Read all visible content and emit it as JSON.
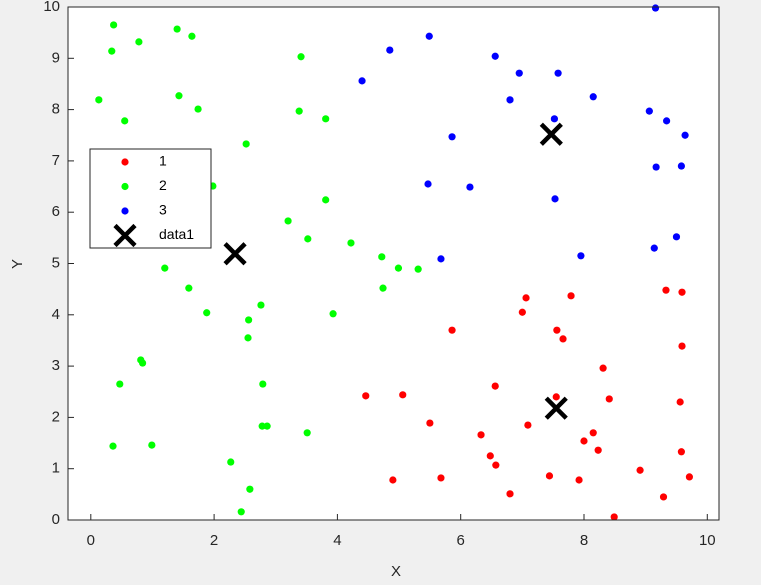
{
  "chart_data": {
    "type": "scatter",
    "x_label": "X",
    "y_label": "Y",
    "xlim": [
      -0.37,
      10.19
    ],
    "ylim": [
      0,
      10
    ],
    "xticks": [
      0,
      2,
      4,
      6,
      8,
      10
    ],
    "yticks": [
      0,
      1,
      2,
      3,
      4,
      5,
      6,
      7,
      8,
      9,
      10
    ],
    "legend": "upper left",
    "series": [
      {
        "name": "1",
        "color": "#ff0000",
        "marker": "dot",
        "x": [
          8.49,
          9.29,
          6.8,
          4.9,
          5.68,
          7.44,
          7.92,
          8.91,
          9.71,
          6.57,
          6.48,
          6.33,
          7.09,
          5.5,
          8.0,
          8.15,
          8.23,
          9.58,
          4.46,
          5.06,
          6.56,
          7.55,
          8.41,
          9.56,
          8.31,
          9.59,
          5.86,
          7.56,
          7.66,
          7.0,
          7.06,
          7.79,
          9.33,
          9.59
        ],
        "values": [
          0.06,
          0.45,
          0.51,
          0.78,
          0.82,
          0.86,
          0.78,
          0.97,
          0.84,
          1.07,
          1.25,
          1.66,
          1.85,
          1.89,
          1.54,
          1.7,
          1.36,
          1.33,
          2.42,
          2.44,
          2.61,
          2.4,
          2.36,
          2.3,
          2.96,
          3.39,
          3.7,
          3.7,
          3.53,
          4.05,
          4.33,
          4.37,
          4.48,
          4.44
        ]
      },
      {
        "name": "2",
        "color": "#00ff00",
        "marker": "dot",
        "x": [
          0.36,
          0.99,
          0.47,
          0.81,
          0.84,
          2.27,
          2.58,
          2.44,
          2.78,
          2.86,
          2.79,
          3.51,
          2.55,
          2.56,
          2.76,
          1.88,
          1.59,
          1.2,
          3.93,
          4.72,
          4.74,
          4.99,
          5.31,
          4.22,
          3.52,
          3.2,
          3.81,
          1.98,
          2.52,
          0.55,
          3.81,
          3.38,
          1.74,
          0.13,
          1.43,
          3.41,
          0.34,
          0.78,
          1.64,
          1.4,
          0.37
        ],
        "values": [
          1.44,
          1.46,
          2.65,
          3.12,
          3.06,
          1.13,
          0.6,
          0.16,
          1.83,
          1.83,
          2.65,
          1.7,
          3.55,
          3.9,
          4.19,
          4.04,
          4.52,
          4.91,
          4.02,
          5.13,
          4.52,
          4.91,
          4.89,
          5.4,
          5.48,
          5.83,
          6.24,
          6.51,
          7.33,
          7.78,
          7.82,
          7.97,
          8.01,
          8.19,
          8.27,
          9.03,
          9.14,
          9.32,
          9.43,
          9.57,
          9.65
        ]
      },
      {
        "name": "3",
        "color": "#0000ff",
        "marker": "dot",
        "x": [
          9.16,
          5.49,
          4.85,
          6.56,
          6.95,
          7.58,
          4.4,
          6.8,
          8.15,
          9.06,
          9.34,
          9.64,
          7.52,
          5.86,
          9.17,
          9.58,
          5.47,
          6.15,
          7.53,
          9.5,
          9.14,
          7.95,
          5.68
        ],
        "values": [
          9.98,
          9.43,
          9.16,
          9.04,
          8.71,
          8.71,
          8.56,
          8.19,
          8.25,
          7.97,
          7.78,
          7.5,
          7.82,
          7.47,
          6.88,
          6.9,
          6.55,
          6.49,
          6.26,
          5.52,
          5.3,
          5.15,
          5.09
        ]
      },
      {
        "name": "data1",
        "color": "#000000",
        "marker": "cross",
        "x": [
          7.47,
          2.34,
          7.55
        ],
        "values": [
          7.52,
          5.19,
          2.18
        ]
      }
    ]
  }
}
